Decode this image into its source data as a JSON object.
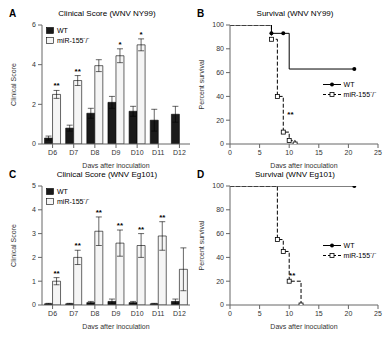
{
  "chart_data": [
    {
      "type": "bar",
      "panel_label": "A",
      "title": "Clinical Score (WNV NY99)",
      "x_label": "Days after inoculation",
      "y_label": "Clinical Score",
      "categories": [
        "D6",
        "D7",
        "D8",
        "D9",
        "D10",
        "D11",
        "D12"
      ],
      "series": [
        {
          "name": "WT",
          "color": "#1a1a1a",
          "values": [
            0.3,
            0.8,
            1.55,
            2.1,
            1.65,
            1.2,
            1.5
          ],
          "errors": [
            0.1,
            0.15,
            0.25,
            0.3,
            0.25,
            0.55,
            0.4
          ]
        },
        {
          "name": "miR-155⁻/⁻",
          "color": "#f5f5f5",
          "values": [
            2.5,
            3.2,
            3.95,
            4.45,
            5.0,
            null,
            null
          ],
          "errors": [
            0.2,
            0.25,
            0.3,
            0.35,
            0.3,
            null,
            null
          ],
          "annotations": [
            "**",
            "**",
            null,
            "*",
            "*",
            null,
            null
          ]
        }
      ],
      "ylim": [
        0,
        6
      ],
      "yticks": [
        0,
        2,
        4,
        6
      ],
      "legend": "upper left"
    },
    {
      "type": "line",
      "panel_label": "B",
      "title": "Survival (WNV NY99)",
      "x_label": "Days after inoculation",
      "y_label": "Percent survival",
      "series": [
        {
          "name": "WT",
          "color": "#000000",
          "line_style": "solid",
          "marker": "circle",
          "x": [
            0,
            7,
            9,
            10,
            21
          ],
          "values": [
            100,
            93,
            93,
            63,
            63
          ],
          "marker_x": [
            7,
            9,
            21
          ],
          "marker_values": [
            93,
            93,
            63
          ]
        },
        {
          "name": "miR-155⁻/⁻",
          "color": "#000000",
          "line_style": "dashed",
          "marker": "square",
          "x": [
            0,
            7,
            8,
            9,
            10,
            11
          ],
          "values": [
            100,
            88,
            40,
            10,
            3,
            0
          ],
          "marker_x": [
            7,
            8,
            9,
            10,
            11
          ],
          "marker_values": [
            88,
            40,
            10,
            3,
            0
          ]
        }
      ],
      "annotations": [
        {
          "text": "**",
          "x": 10.2,
          "y": 22
        }
      ],
      "xlim": [
        0,
        25
      ],
      "xticks": [
        0,
        5,
        10,
        15,
        20,
        25
      ],
      "ylim": [
        0,
        100
      ],
      "yticks": [
        0,
        20,
        40,
        60,
        80,
        100
      ],
      "legend": "center right"
    },
    {
      "type": "bar",
      "panel_label": "C",
      "title": "Clinical Score (WNV Eg101)",
      "x_label": "Days after inoculation",
      "y_label": "Clinical Score",
      "categories": [
        "D6",
        "D7",
        "D8",
        "D9",
        "D10",
        "D11",
        "D12"
      ],
      "series": [
        {
          "name": "WT",
          "color": "#1a1a1a",
          "values": [
            0.05,
            0.05,
            0.1,
            0.15,
            0.1,
            0.05,
            0.15
          ],
          "errors": [
            0.02,
            0.02,
            0.05,
            0.1,
            0.05,
            0.02,
            0.1
          ]
        },
        {
          "name": "miR-155⁻/⁻",
          "color": "#f5f5f5",
          "values": [
            1.0,
            2.0,
            3.1,
            2.6,
            2.5,
            2.9,
            1.5
          ],
          "errors": [
            0.15,
            0.3,
            0.6,
            0.55,
            0.5,
            0.6,
            0.9
          ],
          "annotations": [
            "**",
            "**",
            "**",
            "**",
            "**",
            "**",
            null
          ]
        }
      ],
      "ylim": [
        0,
        5
      ],
      "yticks": [
        0,
        1,
        2,
        3,
        4,
        5
      ],
      "legend": "upper left"
    },
    {
      "type": "line",
      "panel_label": "D",
      "title": "Survival (WNV Eg101)",
      "x_label": "Days after inoculation",
      "y_label": "Percent survival",
      "series": [
        {
          "name": "WT",
          "color": "#000000",
          "line_style": "solid",
          "marker": "circle",
          "x": [
            0,
            21
          ],
          "values": [
            100,
            100
          ],
          "marker_x": [
            21
          ],
          "marker_values": [
            100
          ]
        },
        {
          "name": "miR-155⁻/⁻",
          "color": "#000000",
          "line_style": "dashed",
          "marker": "square",
          "x": [
            0,
            8,
            9,
            10,
            12
          ],
          "values": [
            100,
            55,
            45,
            20,
            0
          ],
          "marker_x": [
            8,
            9,
            10,
            12
          ],
          "marker_values": [
            55,
            45,
            20,
            0
          ]
        }
      ],
      "annotations": [
        {
          "text": "**",
          "x": 10.5,
          "y": 22
        }
      ],
      "xlim": [
        0,
        25
      ],
      "xticks": [
        0,
        5,
        10,
        15,
        20,
        25
      ],
      "ylim": [
        0,
        100
      ],
      "yticks": [
        0,
        20,
        40,
        60,
        80,
        100
      ],
      "legend": "center right"
    }
  ]
}
